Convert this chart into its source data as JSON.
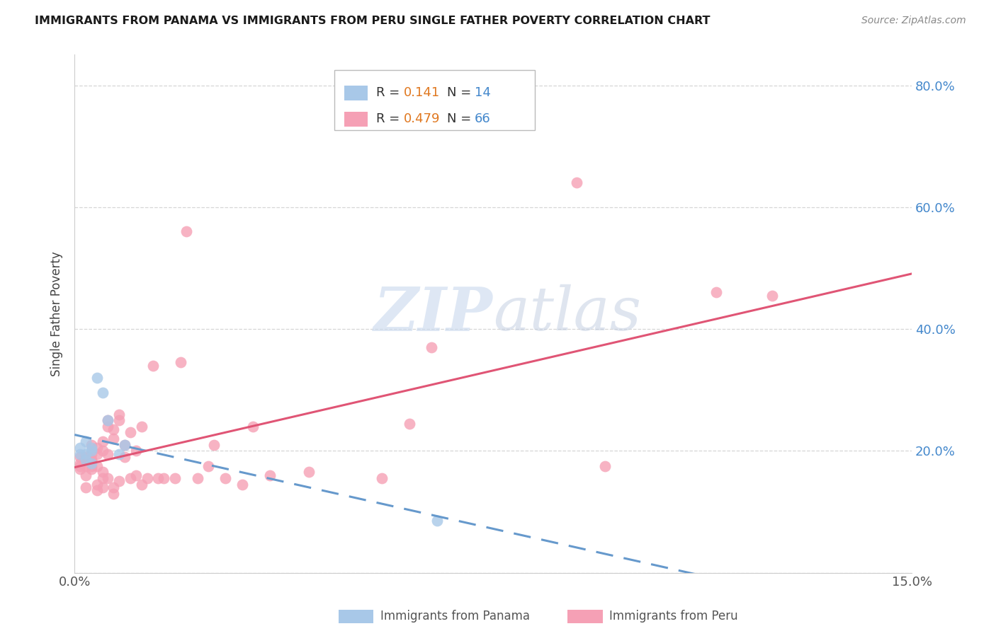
{
  "title": "IMMIGRANTS FROM PANAMA VS IMMIGRANTS FROM PERU SINGLE FATHER POVERTY CORRELATION CHART",
  "source": "Source: ZipAtlas.com",
  "ylabel_label": "Single Father Poverty",
  "xlim": [
    0.0,
    0.15
  ],
  "ylim": [
    0.0,
    0.85
  ],
  "x_ticks": [
    0.0,
    0.03,
    0.06,
    0.09,
    0.12,
    0.15
  ],
  "x_tick_labels": [
    "0.0%",
    "",
    "",
    "",
    "",
    "15.0%"
  ],
  "y_ticks": [
    0.0,
    0.2,
    0.4,
    0.6,
    0.8
  ],
  "y_tick_labels": [
    "",
    "20.0%",
    "40.0%",
    "60.0%",
    "80.0%"
  ],
  "legend_panama_R": "0.141",
  "legend_panama_N": "14",
  "legend_peru_R": "0.479",
  "legend_peru_N": "66",
  "panama_color": "#a8c8e8",
  "peru_color": "#f5a0b5",
  "panama_line_color": "#6699cc",
  "peru_line_color": "#e05575",
  "background_color": "#ffffff",
  "grid_color": "#cccccc",
  "panama_x": [
    0.001,
    0.001,
    0.002,
    0.002,
    0.002,
    0.003,
    0.003,
    0.003,
    0.004,
    0.005,
    0.006,
    0.008,
    0.009,
    0.065
  ],
  "panama_y": [
    0.195,
    0.205,
    0.185,
    0.195,
    0.215,
    0.18,
    0.2,
    0.205,
    0.32,
    0.295,
    0.25,
    0.195,
    0.21,
    0.085
  ],
  "peru_x": [
    0.001,
    0.001,
    0.001,
    0.001,
    0.002,
    0.002,
    0.002,
    0.002,
    0.002,
    0.003,
    0.003,
    0.003,
    0.003,
    0.003,
    0.003,
    0.004,
    0.004,
    0.004,
    0.004,
    0.004,
    0.005,
    0.005,
    0.005,
    0.005,
    0.005,
    0.006,
    0.006,
    0.006,
    0.006,
    0.007,
    0.007,
    0.007,
    0.007,
    0.008,
    0.008,
    0.008,
    0.009,
    0.009,
    0.01,
    0.01,
    0.011,
    0.011,
    0.012,
    0.012,
    0.013,
    0.014,
    0.015,
    0.016,
    0.018,
    0.019,
    0.02,
    0.022,
    0.024,
    0.025,
    0.027,
    0.03,
    0.032,
    0.035,
    0.042,
    0.055,
    0.06,
    0.064,
    0.09,
    0.095,
    0.115,
    0.125
  ],
  "peru_y": [
    0.17,
    0.18,
    0.175,
    0.19,
    0.185,
    0.175,
    0.16,
    0.14,
    0.19,
    0.185,
    0.21,
    0.175,
    0.195,
    0.185,
    0.17,
    0.205,
    0.195,
    0.175,
    0.145,
    0.135,
    0.215,
    0.2,
    0.165,
    0.155,
    0.14,
    0.25,
    0.24,
    0.195,
    0.155,
    0.13,
    0.235,
    0.22,
    0.14,
    0.26,
    0.25,
    0.15,
    0.21,
    0.19,
    0.23,
    0.155,
    0.2,
    0.16,
    0.24,
    0.145,
    0.155,
    0.34,
    0.155,
    0.155,
    0.155,
    0.345,
    0.56,
    0.155,
    0.175,
    0.21,
    0.155,
    0.145,
    0.24,
    0.16,
    0.165,
    0.155,
    0.245,
    0.37,
    0.64,
    0.175,
    0.46,
    0.455
  ],
  "watermark_zip": "ZIP",
  "watermark_atlas": "atlas",
  "watermark_color_zip": "#c8d8ee",
  "watermark_color_atlas": "#c8d0e8"
}
